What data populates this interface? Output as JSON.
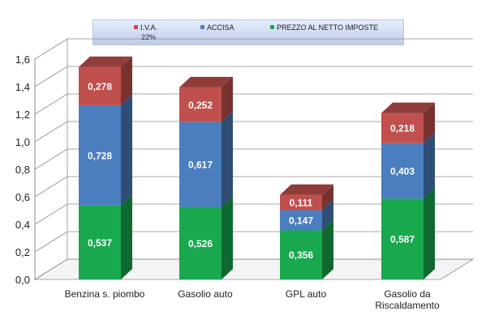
{
  "chart_data": {
    "type": "bar",
    "stacked": true,
    "style": "3d",
    "categories": [
      "Benzina s. piombo",
      "Gasolio auto",
      "GPL auto",
      "Gasolio da|Riscaldamento"
    ],
    "series": [
      {
        "name": "PREZZO AL NETTO IMPOSTE",
        "color": "#1aa84f",
        "values": [
          0.537,
          0.526,
          0.356,
          0.587
        ],
        "labels": [
          "0,537",
          "0,526",
          "0,356",
          "0,587"
        ]
      },
      {
        "name": "ACCISA",
        "color": "#4a7ebf",
        "values": [
          0.728,
          0.617,
          0.147,
          0.403
        ],
        "labels": [
          "0,728",
          "0,617",
          "0,147",
          "0,403"
        ]
      },
      {
        "name": "I.V.A.",
        "color": "#c0504d",
        "values": [
          0.278,
          0.252,
          0.111,
          0.218
        ],
        "labels": [
          "0,278",
          "0,252",
          "0,111",
          "0,218"
        ]
      }
    ],
    "legend_note": "22%",
    "yticks": [
      "0,0",
      "0,2",
      "0,4",
      "0,6",
      "0,8",
      "1,0",
      "1,2",
      "1,4",
      "1,6"
    ],
    "ylim": [
      0,
      1.6
    ],
    "grid": true,
    "legend_position": "top"
  }
}
